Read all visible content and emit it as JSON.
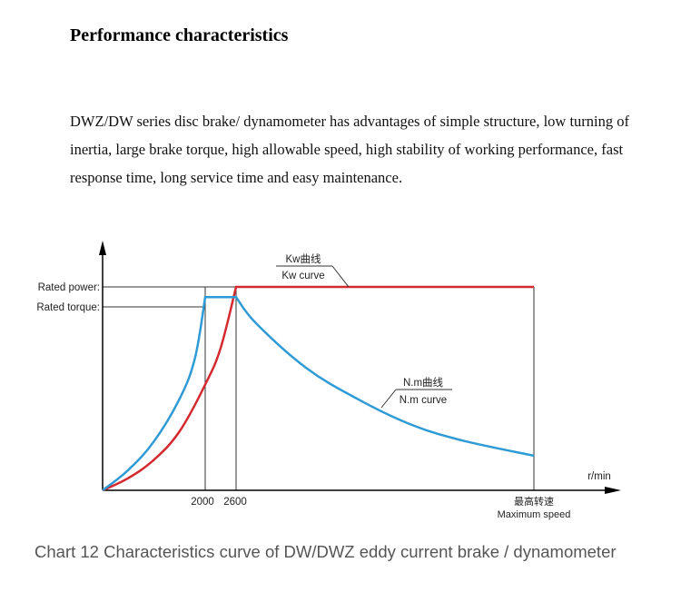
{
  "heading": "Performance characteristics",
  "intro": "DWZ/DW series disc brake/ dynamometer has advantages of simple structure, low turning of inertia, large brake torque, high allowable speed, high stability of working performance, fast response time, long service time and easy maintenance.",
  "caption": "Chart 12 Characteristics curve of DW/DWZ eddy current brake / dynamometer",
  "colors": {
    "kw_curve": "#d42a2f",
    "nm_curve": "#2e9bd6",
    "axis": "#000000",
    "guide": "#333333"
  },
  "chart_data": {
    "type": "line",
    "xlabel": "r/min",
    "ylabel": "",
    "x_ticks": [
      "2000",
      "2600"
    ],
    "x_max_label_cn": "最高转速",
    "x_max_label": "Maximum speed",
    "y_ticks": [
      "Rated power:",
      "Rated torque:"
    ],
    "series": [
      {
        "name": "Kw curve",
        "name_cn": "Kw曲线",
        "x": [
          0,
          500,
          1000,
          1500,
          2000,
          2300,
          2600,
          4000,
          6000,
          8500
        ],
        "y": [
          0,
          6,
          15,
          29,
          52,
          70,
          100,
          100,
          100,
          100
        ]
      },
      {
        "name": "N.m curve",
        "name_cn": "N.m曲线",
        "x": [
          0,
          500,
          1000,
          1500,
          1800,
          2000,
          2300,
          2600,
          3000,
          4000,
          5000,
          6000,
          7000,
          8500
        ],
        "y": [
          0,
          10,
          24,
          45,
          65,
          95,
          95,
          95,
          82,
          60,
          45,
          33,
          25,
          17
        ]
      }
    ]
  }
}
